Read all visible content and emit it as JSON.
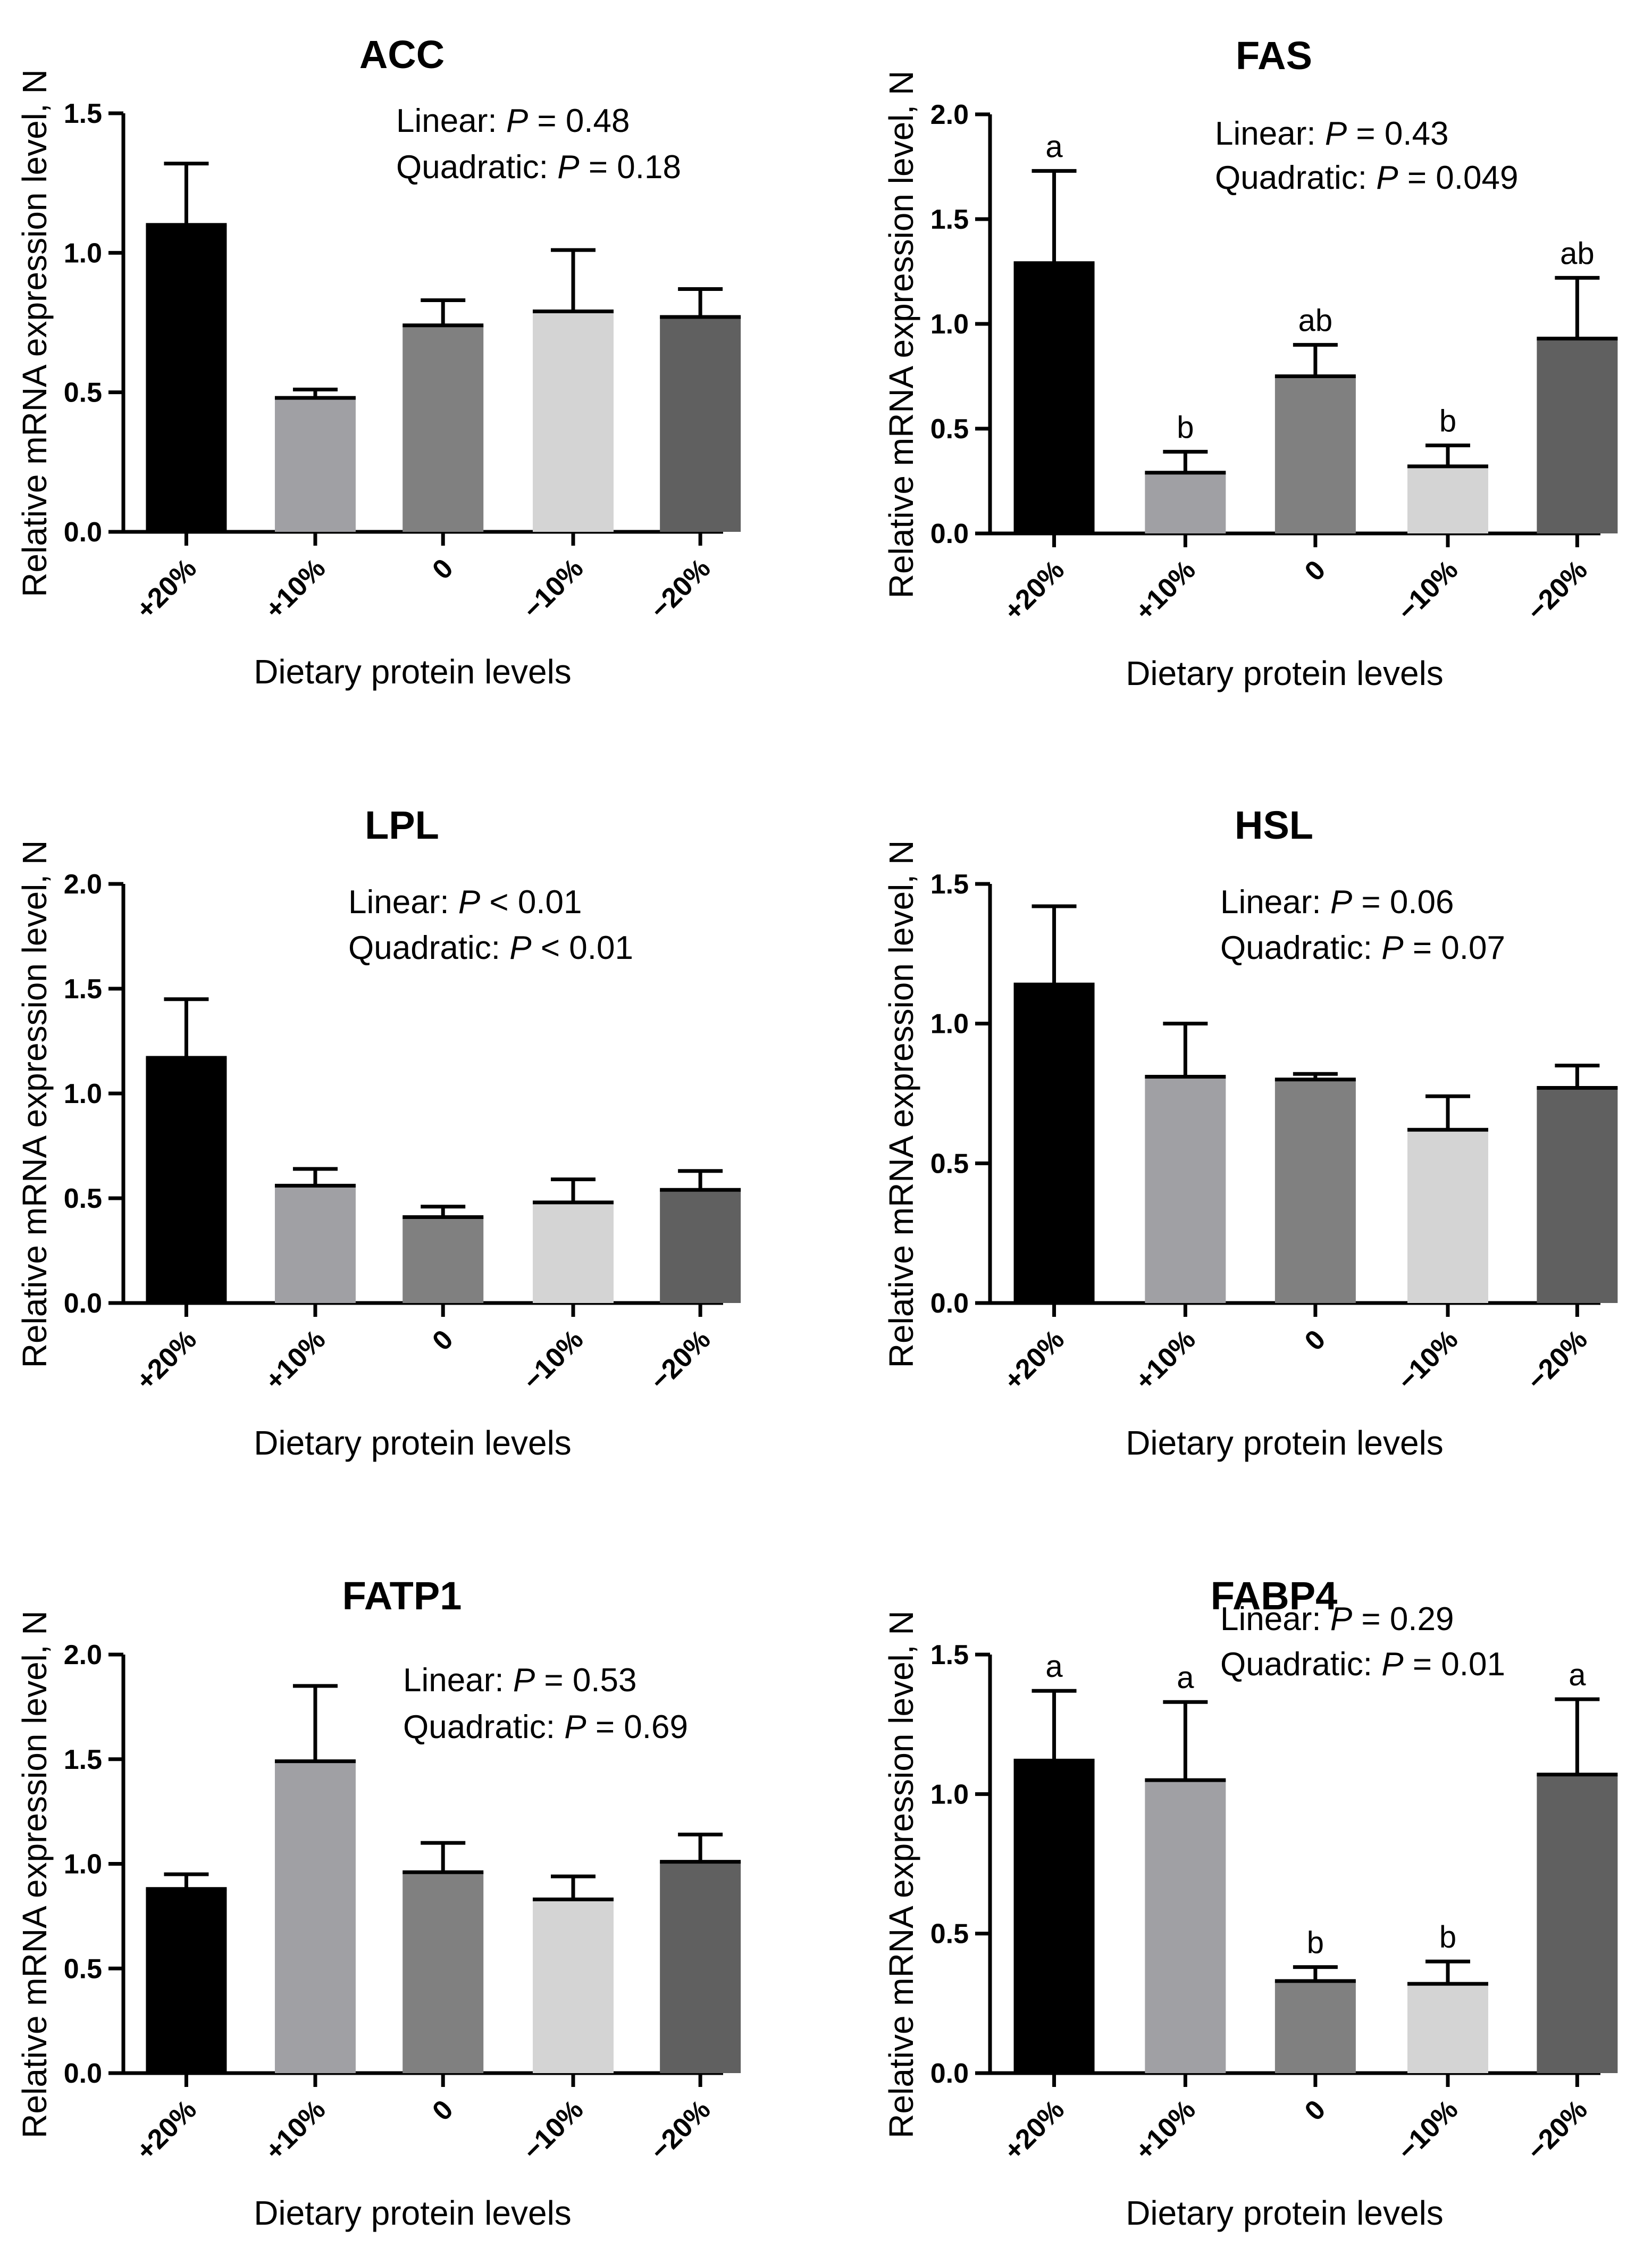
{
  "shared": {
    "ylabel": "Relative mRNA expression level, N",
    "xlabel": "Dietary protein levels",
    "categories": [
      "+20%",
      "+10%",
      "0",
      "−10%",
      "−20%"
    ],
    "bar_colors": [
      "#000000",
      "#a0a0a4",
      "#808080",
      "#d4d4d4",
      "#606060"
    ]
  },
  "chart_data": [
    {
      "type": "bar",
      "title": "ACC",
      "categories": [
        "+20%",
        "+10%",
        "0",
        "−10%",
        "−20%"
      ],
      "values": [
        1.1,
        0.48,
        0.74,
        0.79,
        0.77
      ],
      "errors": [
        0.22,
        0.03,
        0.09,
        0.22,
        0.1
      ],
      "letters": [
        "",
        "",
        "",
        "",
        ""
      ],
      "ylim": [
        0,
        1.5
      ],
      "yticks": [
        "0.0",
        "0.5",
        "1.0",
        "1.5"
      ],
      "xlabel": "Dietary protein levels",
      "ylabel": "Relative mRNA expression level, N",
      "linear": {
        "label": "Linear: ",
        "p": "P",
        "rest": " = 0.48"
      },
      "quadratic": {
        "label": "Quadratic: ",
        "p": "P",
        "rest": " = 0.18"
      }
    },
    {
      "type": "bar",
      "title": "FAS",
      "categories": [
        "+20%",
        "+10%",
        "0",
        "−10%",
        "−20%"
      ],
      "values": [
        1.29,
        0.29,
        0.75,
        0.32,
        0.93
      ],
      "errors": [
        0.44,
        0.1,
        0.15,
        0.1,
        0.29
      ],
      "letters": [
        "a",
        "b",
        "ab",
        "b",
        "ab"
      ],
      "ylim": [
        0,
        2.0
      ],
      "yticks": [
        "0.0",
        "0.5",
        "1.0",
        "1.5",
        "2.0"
      ],
      "xlabel": "Dietary protein levels",
      "ylabel": "Relative mRNA expression level, N",
      "linear": {
        "label": "Linear: ",
        "p": "P",
        "rest": " = 0.43"
      },
      "quadratic": {
        "label": "Quadratic: ",
        "p": "P",
        "rest": " = 0.049"
      }
    },
    {
      "type": "bar",
      "title": "LPL",
      "categories": [
        "+20%",
        "+10%",
        "0",
        "−10%",
        "−20%"
      ],
      "values": [
        1.17,
        0.56,
        0.41,
        0.48,
        0.54
      ],
      "errors": [
        0.28,
        0.08,
        0.05,
        0.11,
        0.09
      ],
      "letters": [
        "",
        "",
        "",
        "",
        ""
      ],
      "ylim": [
        0,
        2.0
      ],
      "yticks": [
        "0.0",
        "0.5",
        "1.0",
        "1.5",
        "2.0"
      ],
      "xlabel": "Dietary protein levels",
      "ylabel": "Relative mRNA expression level, N",
      "linear": {
        "label": "Linear: ",
        "p": "P",
        "rest": " < 0.01"
      },
      "quadratic": {
        "label": "Quadratic: ",
        "p": "P",
        "rest": " < 0.01"
      }
    },
    {
      "type": "bar",
      "title": "HSL",
      "categories": [
        "+20%",
        "+10%",
        "0",
        "−10%",
        "−20%"
      ],
      "values": [
        1.14,
        0.81,
        0.8,
        0.62,
        0.77
      ],
      "errors": [
        0.28,
        0.19,
        0.02,
        0.12,
        0.08
      ],
      "letters": [
        "",
        "",
        "",
        "",
        ""
      ],
      "ylim": [
        0,
        1.5
      ],
      "yticks": [
        "0.0",
        "0.5",
        "1.0",
        "1.5"
      ],
      "xlabel": "Dietary protein levels",
      "ylabel": "Relative mRNA expression level, N",
      "linear": {
        "label": "Linear: ",
        "p": "P",
        "rest": " = 0.06"
      },
      "quadratic": {
        "label": "Quadratic: ",
        "p": "P",
        "rest": " = 0.07"
      }
    },
    {
      "type": "bar",
      "title": "FATP1",
      "categories": [
        "+20%",
        "+10%",
        "0",
        "−10%",
        "−20%"
      ],
      "values": [
        0.88,
        1.49,
        0.96,
        0.83,
        1.01
      ],
      "errors": [
        0.07,
        0.36,
        0.14,
        0.11,
        0.13
      ],
      "letters": [
        "",
        "",
        "",
        "",
        ""
      ],
      "ylim": [
        0,
        2.0
      ],
      "yticks": [
        "0.0",
        "0.5",
        "1.0",
        "1.5",
        "2.0"
      ],
      "xlabel": "Dietary protein levels",
      "ylabel": "Relative mRNA expression level, N",
      "linear": {
        "label": "Linear: ",
        "p": "P",
        "rest": " = 0.53"
      },
      "quadratic": {
        "label": "Quadratic: ",
        "p": "P",
        "rest": " = 0.69"
      }
    },
    {
      "type": "bar",
      "title": "FABP4",
      "categories": [
        "+20%",
        "+10%",
        "0",
        "−10%",
        "−20%"
      ],
      "values": [
        1.12,
        1.05,
        0.33,
        0.32,
        1.07
      ],
      "errors": [
        0.25,
        0.28,
        0.05,
        0.08,
        0.27
      ],
      "letters": [
        "a",
        "a",
        "b",
        "b",
        "a"
      ],
      "ylim": [
        0,
        1.5
      ],
      "yticks": [
        "0.0",
        "0.5",
        "1.0",
        "1.5"
      ],
      "xlabel": "Dietary protein levels",
      "ylabel": "Relative mRNA expression level, N",
      "linear": {
        "label": "Linear: ",
        "p": "P",
        "rest": " = 0.29"
      },
      "quadratic": {
        "label": "Quadratic: ",
        "p": "P",
        "rest": " = 0.01"
      }
    }
  ]
}
